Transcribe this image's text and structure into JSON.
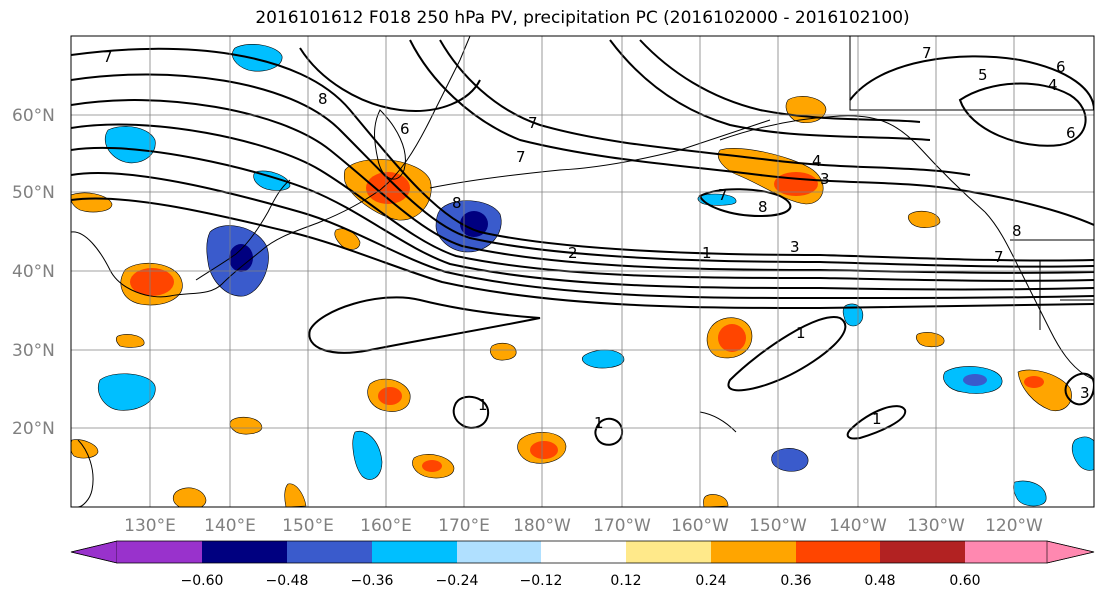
{
  "title": "2016101612 F018 250 hPa PV, precipitation PC (2016102000 - 2016102100)",
  "lat_labels": [
    "60°N",
    "50°N",
    "40°N",
    "30°N",
    "20°N"
  ],
  "lon_labels": [
    "130°E",
    "140°E",
    "150°E",
    "160°E",
    "170°E",
    "180°W",
    "170°W",
    "160°W",
    "150°W",
    "140°W",
    "130°W",
    "120°W"
  ],
  "contour_labels": [
    "7",
    "8",
    "6",
    "7",
    "7",
    "6",
    "5",
    "4",
    "7",
    "2",
    "1",
    "3",
    "4",
    "3",
    "7",
    "8",
    "8",
    "1",
    "1",
    "1",
    "1",
    "3",
    "7",
    "6",
    "8"
  ],
  "colorbar": {
    "ticks": [
      "−0.60",
      "−0.48",
      "−0.36",
      "−0.24",
      "−0.12",
      "0.12",
      "0.24",
      "0.36",
      "0.48",
      "0.60"
    ],
    "colors": [
      "#9932cc",
      "#000080",
      "#3a5bcc",
      "#00bfff",
      "#b0e0ff",
      "#ffffff",
      "#ffe98a",
      "#ffa500",
      "#ff4500",
      "#b22222",
      "#ff88b0"
    ]
  }
}
